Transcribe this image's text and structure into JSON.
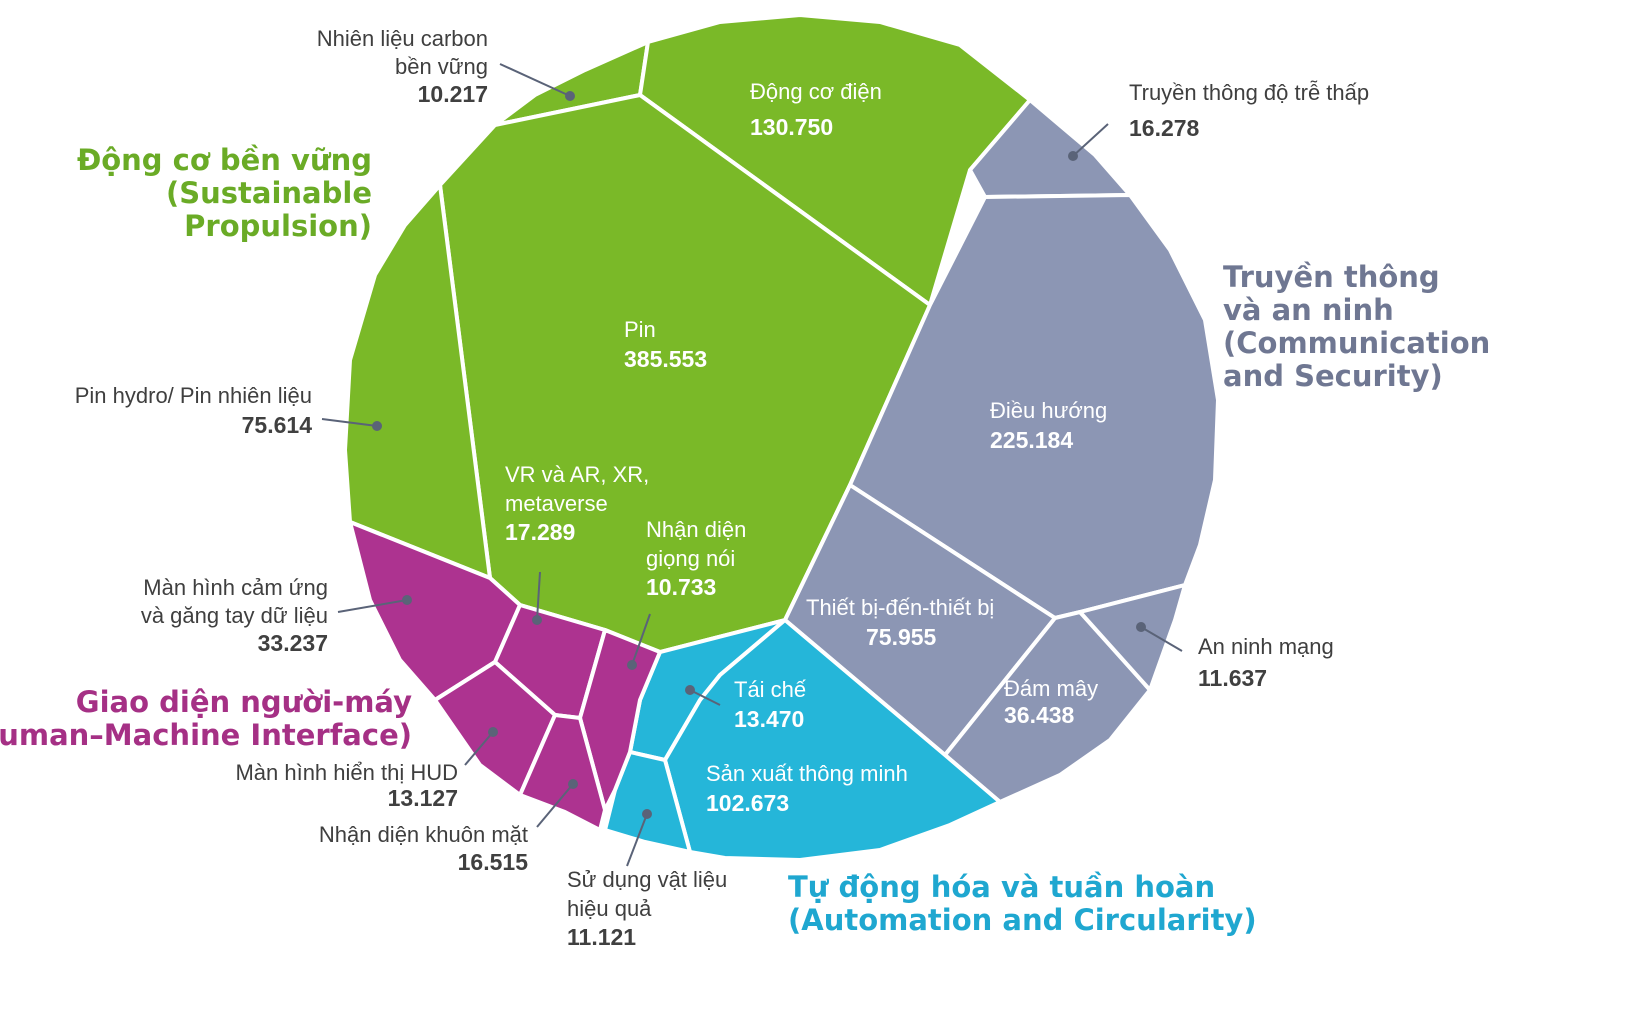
{
  "colors": {
    "green": "#7ab928",
    "gray": "#8c96b4",
    "teal": "#25b6d9",
    "magenta": "#ad3390",
    "green_text": "#6aab26",
    "gray_text": "#6f7792",
    "teal_text": "#1fa7d0",
    "magenta_text": "#a53085",
    "label_text": "#3f3f3f",
    "leader": "#5a6378"
  },
  "chart_data": {
    "type": "voronoi-treemap",
    "groups": [
      {
        "name_lines": [
          "Động cơ bền vững",
          "(Sustainable",
          "Propulsion)"
        ],
        "color": "#7ab928",
        "items": [
          {
            "id": "nhien-lieu-carbon",
            "label_lines": [
              "Nhiên liệu carbon",
              "bền vững"
            ],
            "value": "10.217"
          },
          {
            "id": "dong-co-dien",
            "label_lines": [
              "Động cơ điện"
            ],
            "value": "130.750"
          },
          {
            "id": "pin",
            "label_lines": [
              "Pin"
            ],
            "value": "385.553"
          },
          {
            "id": "pin-hydro",
            "label_lines": [
              "Pin hydro/ Pin nhiên liệu"
            ],
            "value": "75.614"
          }
        ]
      },
      {
        "name_lines": [
          "Truyền thông",
          "và an ninh",
          "(Communication",
          "and Security)"
        ],
        "color": "#8c96b4",
        "items": [
          {
            "id": "truyen-thong-do-tre",
            "label_lines": [
              "Truyền thông độ trễ thấp"
            ],
            "value": "16.278"
          },
          {
            "id": "dieu-huong",
            "label_lines": [
              "Điều hướng"
            ],
            "value": "225.184"
          },
          {
            "id": "thiet-bi",
            "label_lines": [
              "Thiết bị-đến-thiết bị"
            ],
            "value": "75.955"
          },
          {
            "id": "dam-may",
            "label_lines": [
              "Đám mây"
            ],
            "value": "36.438"
          },
          {
            "id": "an-ninh-mang",
            "label_lines": [
              "An ninh mạng"
            ],
            "value": "11.637"
          }
        ]
      },
      {
        "name_lines": [
          "Tự động hóa và tuần hoàn",
          "(Automation and Circularity)"
        ],
        "color": "#25b6d9",
        "items": [
          {
            "id": "tai-che",
            "label_lines": [
              "Tái chế"
            ],
            "value": "13.470"
          },
          {
            "id": "san-xuat",
            "label_lines": [
              "Sản xuất thông minh"
            ],
            "value": "102.673"
          },
          {
            "id": "su-dung-vat-lieu",
            "label_lines": [
              "Sử dụng vật liệu",
              "hiệu quả"
            ],
            "value": "11.121"
          }
        ]
      },
      {
        "name_lines": [
          "Giao diện người-máy",
          "(Human–Machine Interface)"
        ],
        "color": "#ad3390",
        "items": [
          {
            "id": "vr-ar",
            "label_lines": [
              "VR và AR, XR,",
              "metaverse"
            ],
            "value": "17.289"
          },
          {
            "id": "nhan-dien-giong-noi",
            "label_lines": [
              "Nhận diện",
              "giọng nói"
            ],
            "value": "10.733"
          },
          {
            "id": "man-hinh-cam-ung",
            "label_lines": [
              "Màn hình cảm ứng",
              "và găng tay dữ liệu"
            ],
            "value": "33.237"
          },
          {
            "id": "hud",
            "label_lines": [
              "Màn hình hiển thị HUD"
            ],
            "value": "13.127"
          },
          {
            "id": "nhan-dien-khuon-mat",
            "label_lines": [
              "Nhận diện khuôn mặt"
            ],
            "value": "16.515"
          }
        ]
      }
    ]
  }
}
